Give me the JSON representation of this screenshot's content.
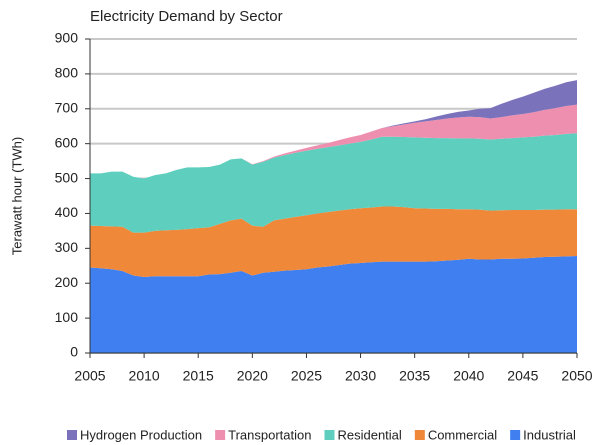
{
  "chart_data": {
    "type": "stacked-area",
    "title": "Electricity Demand by Sector",
    "y_label": "Terawatt hour (TWh)",
    "x": [
      2005,
      2006,
      2007,
      2008,
      2009,
      2010,
      2011,
      2012,
      2013,
      2014,
      2015,
      2016,
      2017,
      2018,
      2019,
      2020,
      2021,
      2022,
      2023,
      2024,
      2025,
      2026,
      2027,
      2028,
      2029,
      2030,
      2031,
      2032,
      2033,
      2034,
      2035,
      2036,
      2037,
      2038,
      2039,
      2040,
      2041,
      2042,
      2043,
      2044,
      2045,
      2046,
      2047,
      2048,
      2049,
      2050
    ],
    "series": [
      {
        "name": "Industrial",
        "color": "#3f7ff0",
        "values": [
          245,
          243,
          240,
          235,
          222,
          218,
          220,
          220,
          220,
          220,
          220,
          225,
          226,
          230,
          235,
          222,
          230,
          233,
          236,
          238,
          240,
          245,
          248,
          252,
          256,
          258,
          260,
          262,
          262,
          262,
          262,
          262,
          263,
          265,
          267,
          270,
          268,
          268,
          270,
          270,
          271,
          273,
          275,
          276,
          277,
          278
        ]
      },
      {
        "name": "Commercial",
        "color": "#f0883a",
        "values": [
          120,
          121,
          123,
          127,
          123,
          127,
          130,
          132,
          133,
          135,
          138,
          135,
          144,
          150,
          150,
          143,
          132,
          147,
          149,
          152,
          155,
          155,
          156,
          156,
          156,
          157,
          157,
          158,
          158,
          156,
          153,
          152,
          150,
          148,
          145,
          142,
          143,
          140,
          139,
          140,
          139,
          137,
          136,
          135,
          135,
          134
        ]
      },
      {
        "name": "Residential",
        "color": "#5ecfbe",
        "values": [
          150,
          151,
          157,
          158,
          160,
          155,
          160,
          163,
          172,
          177,
          174,
          173,
          170,
          175,
          173,
          175,
          186,
          180,
          182,
          184,
          185,
          185,
          186,
          187,
          188,
          190,
          195,
          200,
          200,
          201,
          203,
          203,
          203,
          203,
          203,
          203,
          203,
          204,
          205,
          206,
          208,
          210,
          212,
          214,
          216,
          218
        ]
      },
      {
        "name": "Transportation",
        "color": "#ef8fb0",
        "values": [
          0,
          0,
          0,
          0,
          0,
          0,
          0,
          0,
          0,
          0,
          0,
          0,
          0,
          0,
          0,
          1,
          2,
          3,
          5,
          6,
          8,
          10,
          12,
          15,
          18,
          20,
          23,
          25,
          30,
          36,
          42,
          47,
          52,
          56,
          60,
          62,
          62,
          60,
          62,
          65,
          67,
          70,
          74,
          77,
          80,
          82
        ]
      },
      {
        "name": "Hydrogen Production",
        "color": "#7b72bc",
        "values": [
          0,
          0,
          0,
          0,
          0,
          0,
          0,
          0,
          0,
          0,
          0,
          0,
          0,
          0,
          0,
          0,
          0,
          0,
          0,
          0,
          0,
          0,
          0,
          0,
          0,
          0,
          0,
          0,
          2,
          3,
          4,
          6,
          10,
          13,
          16,
          18,
          24,
          30,
          38,
          44,
          50,
          56,
          60,
          64,
          68,
          70
        ]
      }
    ],
    "xlim": [
      2005,
      2050
    ],
    "xticks": [
      2005,
      2010,
      2015,
      2020,
      2025,
      2030,
      2035,
      2040,
      2045,
      2050
    ],
    "ylim": [
      0,
      900
    ],
    "yticks": [
      0,
      100,
      200,
      300,
      400,
      500,
      600,
      700,
      800,
      900
    ],
    "grid": true,
    "legend": "bottom"
  }
}
